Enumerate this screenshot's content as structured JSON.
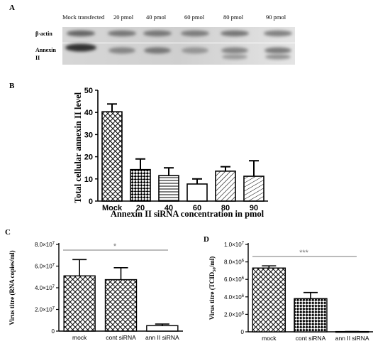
{
  "panel_labels": [
    "A",
    "B",
    "C",
    "D"
  ],
  "blot": {
    "lane_labels": [
      "Mock transfected",
      "20 pmol",
      "40 pmol",
      "60 pmol",
      "80 pmol",
      "90 pmol"
    ],
    "row_labels": [
      "β-actin",
      "Annexin",
      "II"
    ],
    "band_intensity": {
      "beta_actin": [
        0.9,
        0.75,
        0.75,
        0.7,
        0.75,
        0.65
      ],
      "annexin": [
        1.0,
        0.45,
        0.55,
        0.35,
        0.45,
        0.5
      ]
    }
  },
  "chart_data": [
    {
      "panel": "B",
      "type": "bar",
      "categories": [
        "Mock",
        "20",
        "40",
        "60",
        "80",
        "90"
      ],
      "values": [
        40.3,
        14.2,
        11.5,
        7.7,
        13.5,
        11.2
      ],
      "errors": [
        3.5,
        4.8,
        3.5,
        2.3,
        2.0,
        7.0
      ],
      "patterns": [
        "crosshatch",
        "check",
        "hlines",
        "solid-white",
        "diag",
        "diag-steep"
      ],
      "xlabel": "Annexin II siRNA concentration in pmol",
      "ylabel": "Total cellular annexin II level",
      "ylim": [
        0,
        50
      ],
      "yticks": [
        "0",
        "10",
        "20",
        "30",
        "40",
        "50"
      ]
    },
    {
      "panel": "C",
      "type": "bar",
      "categories": [
        "mock",
        "cont siRNA",
        "ann II siRNA"
      ],
      "values": [
        51000000,
        47500000,
        5000000
      ],
      "errors": [
        15000000,
        11000000,
        1500000
      ],
      "patterns": [
        "crosshatch",
        "crosshatch",
        "solid-white"
      ],
      "xlabel": "",
      "ylabel": "Virus titre (RNA copies/ml)",
      "ylim": [
        0,
        80000000
      ],
      "ytick_values": [
        0,
        20000000,
        40000000,
        60000000,
        80000000
      ],
      "ytick_mantissas": [
        "0",
        "2.0×10",
        "4.0×10",
        "6.0×10",
        "8.0×10"
      ],
      "ytick_exponent": "7",
      "significance": "*"
    },
    {
      "panel": "D",
      "type": "bar",
      "categories": [
        "mock",
        "cont siRNA",
        "ann II siRNA"
      ],
      "values": [
        7300000,
        3800000,
        30000
      ],
      "errors": [
        250000,
        700000,
        10000
      ],
      "patterns": [
        "crosshatch",
        "check",
        "solid-white"
      ],
      "xlabel": "",
      "ylabel": "Virus titre (TCID",
      "ylabel_subscript": "50",
      "ylabel_suffix": "/ml)",
      "ylim": [
        0,
        10000000
      ],
      "ytick_values": [
        0,
        2000000,
        4000000,
        6000000,
        8000000,
        10000000
      ],
      "ytick_mantissas": [
        "0",
        "2.0×10",
        "4.0×10",
        "6.0×10",
        "8.0×10",
        "1.0×10"
      ],
      "ytick_exponents": [
        "",
        "6",
        "6",
        "6",
        "6",
        "7"
      ],
      "significance": "***"
    }
  ]
}
